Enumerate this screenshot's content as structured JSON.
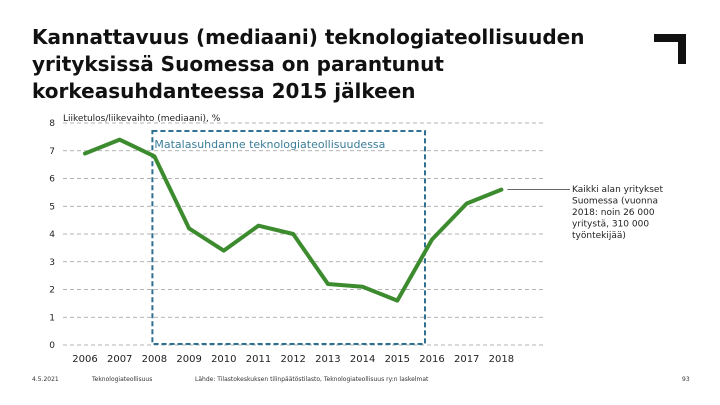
{
  "title_lines": [
    "Kannattavuus (mediaani) teknologiateollisuuden",
    "yrityksissä Suomessa on parantunut",
    "korkeasuhdanteessa 2015 jälkeen"
  ],
  "footer": {
    "date": "4.5.2021",
    "org": "Teknologiateollisuus",
    "source": "Lähde: Tilastokeskuksen tilinpäätöstilasto, Teknologiateollisuus ry:n laskelmat",
    "page": "93"
  },
  "colors": {
    "line": "#3d8b2f",
    "box": "#2e6e8e",
    "box_text": "#3a7d9a",
    "grid": "#9a9a9a"
  },
  "chart_data": {
    "type": "line",
    "ylabel": "Liiketulos/liikevaihto (mediaani), %",
    "x": [
      "2006",
      "2007",
      "2008",
      "2009",
      "2010",
      "2011",
      "2012",
      "2013",
      "2014",
      "2015",
      "2016",
      "2017",
      "2018"
    ],
    "y_ticks": [
      "0",
      "1",
      "2",
      "3",
      "4",
      "5",
      "6",
      "7",
      "8"
    ],
    "ylim": [
      0,
      8
    ],
    "grid": true,
    "series": [
      {
        "values": [
          6.9,
          7.4,
          6.8,
          4.2,
          3.4,
          4.3,
          4.0,
          2.2,
          2.1,
          1.6,
          3.8,
          5.1,
          5.6
        ]
      }
    ],
    "annotations": {
      "highlight_label": "Matalasuhdanne teknologiateollisuudessa",
      "highlight_range": [
        "2008",
        "2016"
      ],
      "series_label_lines": [
        "Kaikki alan yritykset",
        "Suomessa (vuonna",
        "2018: noin 26 000",
        "yritystä, 310 000",
        "työntekijää)"
      ]
    }
  }
}
